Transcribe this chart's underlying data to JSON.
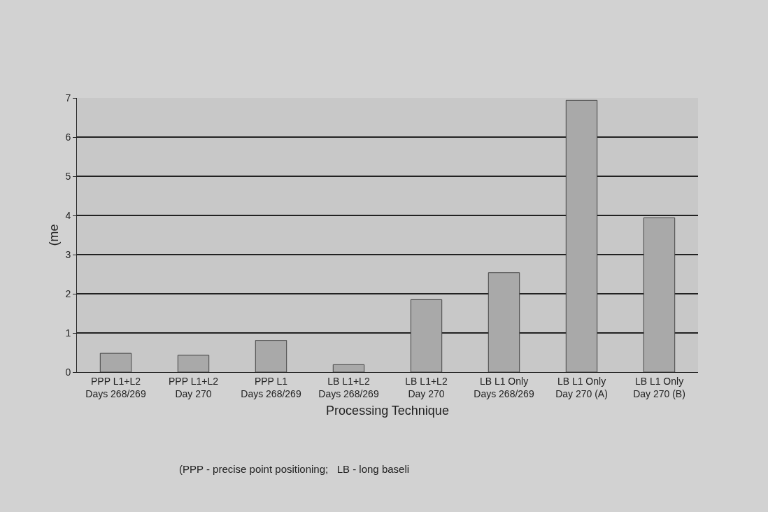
{
  "chart_data": {
    "type": "bar",
    "xlabel": "Processing Technique",
    "ylabel": "(me",
    "categories": [
      "PPP L1+L2 Days 268/269",
      "PPP L1+L2 Day 270",
      "PPP L1 Days 268/269",
      "LB L1+L2 Days 268/269",
      "LB L1+L2 Day 270",
      "LB L1 Only Days 268/269",
      "LB L1 Only Day 270 (A)",
      "LB L1 Only Day 270 (B)"
    ],
    "values": [
      0.48,
      0.43,
      0.81,
      0.19,
      1.85,
      2.54,
      6.94,
      3.94
    ],
    "color": "#a9a9a9",
    "ylim": [
      0,
      7
    ],
    "yticks": [
      0,
      1,
      2,
      3,
      4,
      5,
      6,
      7
    ],
    "grid": "y",
    "legend": false,
    "annotations": [
      "(PPP - precise point positioning;   LB - long baseli"
    ]
  }
}
